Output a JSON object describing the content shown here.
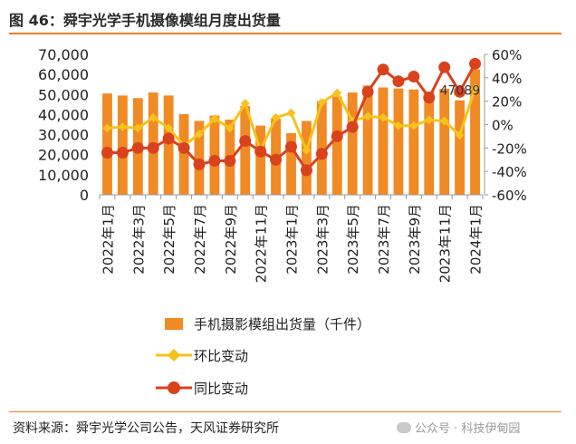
{
  "header": {
    "title": "图 46：舜宇光学手机摄像模组月度出货量"
  },
  "footer": {
    "source": "资料来源：舜宇光学公司公告，天风证券研究所",
    "watermark": "公众号 · 科技伊甸园"
  },
  "colors": {
    "accent": "#f07d2a",
    "bar": "#f08a24",
    "mom": "#f7c21b",
    "yoy": "#d8421c",
    "axis": "#9a9a9a"
  },
  "chart_data": {
    "type": "bar",
    "categories": [
      "2022年1月",
      "2022年2月",
      "2022年3月",
      "2022年4月",
      "2022年5月",
      "2022年6月",
      "2022年7月",
      "2022年8月",
      "2022年9月",
      "2022年10月",
      "2022年11月",
      "2022年12月",
      "2023年1月",
      "2023年2月",
      "2023年3月",
      "2023年4月",
      "2023年5月",
      "2023年6月",
      "2023年7月",
      "2023年8月",
      "2023年9月",
      "2023年10月",
      "2023年11月",
      "2023年12月",
      "2024年1月"
    ],
    "x_tick_labels": [
      "2022年1月",
      "2022年3月",
      "2022年5月",
      "2022年7月",
      "2022年9月",
      "2022年11月",
      "2023年1月",
      "2023年3月",
      "2023年5月",
      "2023年7月",
      "2023年9月",
      "2023年11月",
      "2024年1月"
    ],
    "series": [
      {
        "name": "手机摄影模组出货量（千件）",
        "type": "bar",
        "axis": "left",
        "values": [
          50500,
          49500,
          48200,
          51000,
          49500,
          40200,
          36800,
          39500,
          37500,
          44200,
          34500,
          38000,
          30700,
          36800,
          46800,
          49000,
          51000,
          54500,
          53500,
          53000,
          52500,
          51500,
          52800,
          47089,
          62500
        ]
      },
      {
        "name": "环比变动",
        "type": "line",
        "axis": "right",
        "values": [
          -3,
          -2,
          -3,
          6,
          -3,
          -18,
          -8,
          5,
          -3,
          18,
          -22,
          6,
          10,
          -22,
          19,
          27,
          3,
          7,
          6,
          -1,
          -1,
          4,
          3,
          -9,
          31
        ]
      },
      {
        "name": "同比变动",
        "type": "line",
        "axis": "right",
        "values": [
          -24,
          -24,
          -20,
          -20,
          -12,
          -20,
          -34,
          -31,
          -31,
          -14,
          -23,
          -30,
          -19,
          -39,
          -25,
          -10,
          -2,
          28,
          47,
          37,
          41,
          23,
          49,
          28,
          52
        ]
      }
    ],
    "y_left": {
      "min": 0,
      "max": 70000,
      "ticks": [
        "0",
        "10,000",
        "20,000",
        "30,000",
        "40,000",
        "50,000",
        "60,000",
        "70,000"
      ]
    },
    "y_right": {
      "min": -60,
      "max": 60,
      "ticks": [
        "-60%",
        "-40%",
        "-20%",
        "0%",
        "20%",
        "40%",
        "60%"
      ]
    },
    "annotation": "47089",
    "legend_position": "bottom",
    "grid": false
  }
}
